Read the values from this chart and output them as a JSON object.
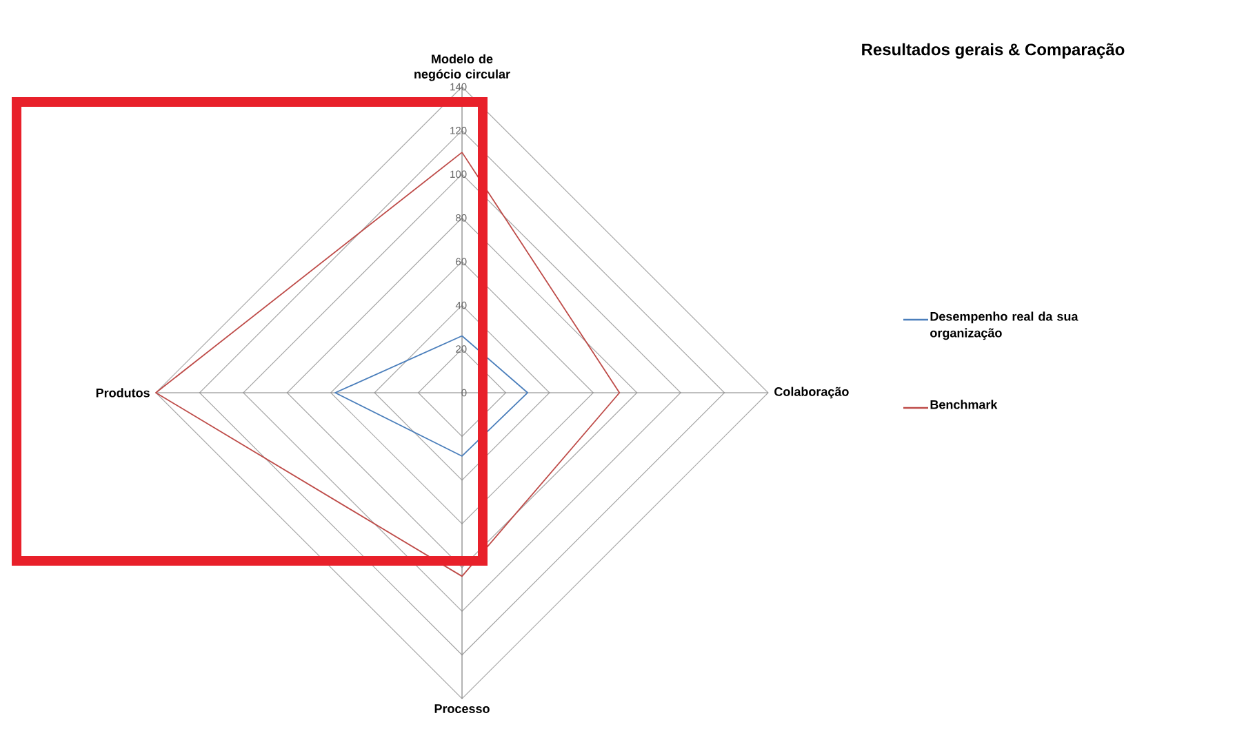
{
  "chart_data": {
    "type": "radar",
    "title": "Resultados gerais & Comparação",
    "categories": [
      "Modelo de negócio circular",
      "Colaboração",
      "Processo",
      "Produtos"
    ],
    "series": [
      {
        "name": "Desempenho real da sua organização",
        "color": "#4a7ebb",
        "values": [
          26,
          30,
          29,
          58
        ]
      },
      {
        "name": "Benchmark",
        "color": "#be4b48",
        "values": [
          110,
          72,
          84,
          140
        ]
      }
    ],
    "ylim": [
      0,
      140
    ],
    "yticks": [
      0,
      20,
      40,
      60,
      80,
      100,
      120,
      140
    ],
    "grid": true,
    "legend": "right"
  }
}
